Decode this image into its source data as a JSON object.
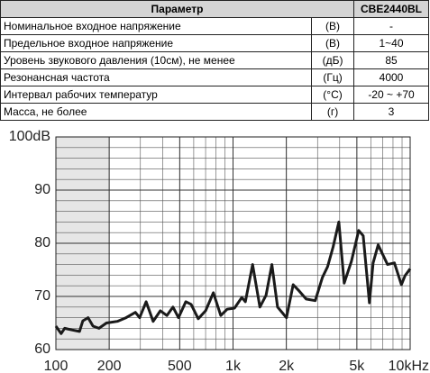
{
  "table": {
    "header": {
      "parameter": "Параметр",
      "model": "CBE2440BL"
    },
    "rows": [
      [
        "Номинальное входное напряжение",
        "(В)",
        "-"
      ],
      [
        "Предельное входное напряжение",
        "(В)",
        "1~40"
      ],
      [
        "Уровень звукового давления (10см), не менее",
        "(дБ)",
        "85"
      ],
      [
        "Резонансная частота",
        "(Гц)",
        "4000"
      ],
      [
        "Интервал рабочих температур",
        "(°С)",
        "-20 ~ +70"
      ],
      [
        "Масса, не более",
        "(г)",
        "3"
      ]
    ]
  },
  "chart_data": {
    "type": "line",
    "xscale": "log",
    "grid": true,
    "color": "#1a1a1a",
    "x": [
      100,
      107,
      112,
      123,
      136,
      142,
      152,
      162,
      175,
      193,
      222,
      249,
      281,
      297,
      323,
      354,
      389,
      423,
      458,
      492,
      541,
      580,
      636,
      700,
      775,
      853,
      927,
      1019,
      1121,
      1174,
      1290,
      1418,
      1535,
      1657,
      1785,
      2003,
      2186,
      2337,
      2586,
      2912,
      3199,
      3420,
      3671,
      3960,
      4240,
      4660,
      5120,
      5430,
      5890,
      6180,
      6600,
      7450,
      8150,
      8930,
      9350,
      10000
    ],
    "values": [
      64.4,
      63,
      64,
      63.7,
      63.4,
      65.4,
      66,
      64.4,
      64,
      65,
      65.3,
      66,
      67,
      66,
      69,
      65.3,
      67.3,
      66.4,
      68,
      66,
      69,
      68.5,
      65.8,
      67.3,
      70.7,
      66.4,
      67.6,
      67.8,
      69.8,
      69,
      76,
      68,
      70.2,
      76,
      68,
      66,
      72.2,
      71.2,
      69.5,
      69.2,
      73.6,
      75.6,
      79.3,
      84,
      72.5,
      76.6,
      82.4,
      81.4,
      68.8,
      76.3,
      79.7,
      76,
      76.3,
      72.2,
      73.9,
      75.2
    ],
    "xlim": [
      100,
      10000
    ],
    "ylim": [
      60,
      100
    ],
    "xticks": [
      100,
      200,
      500,
      {
        "value": 1000,
        "label": "1k"
      },
      {
        "value": 2000,
        "label": "2k"
      },
      {
        "value": 5000,
        "label": "5k"
      },
      {
        "value": 10000,
        "label": "10kHz"
      }
    ],
    "yticks": [
      60,
      70,
      80,
      90,
      {
        "value": 100,
        "label": "100dB"
      }
    ]
  }
}
